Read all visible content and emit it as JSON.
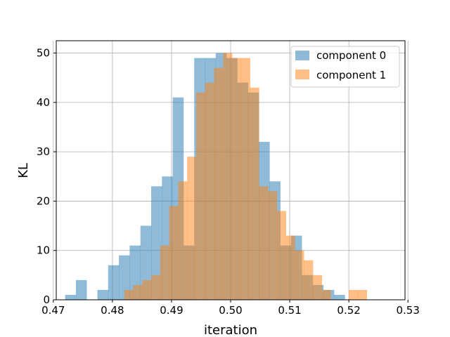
{
  "chart_data": {
    "type": "bar",
    "subtype": "overlapping-histogram",
    "xlabel": "iteration",
    "ylabel": "KL",
    "xlim": [
      0.4705,
      0.5295
    ],
    "ylim": [
      0,
      52.5
    ],
    "xticks": [
      "0.47",
      "0.48",
      "0.49",
      "0.50",
      "0.51",
      "0.52",
      "0.53"
    ],
    "yticks": [
      "0",
      "10",
      "20",
      "30",
      "40",
      "50"
    ],
    "grid": true,
    "legend_position": "top-right",
    "series": [
      {
        "name": "component 0",
        "color": "#1f77b4",
        "alpha": 0.5,
        "bin_start": 0.472,
        "bin_width": 0.00182,
        "counts": [
          1,
          4,
          0,
          2,
          7,
          9,
          11,
          15,
          23,
          25,
          41,
          11,
          49,
          49,
          50,
          49,
          44,
          42,
          32,
          24,
          11,
          13,
          5,
          3,
          2,
          1
        ]
      },
      {
        "name": "component 1",
        "color": "#ff7f0e",
        "alpha": 0.5,
        "bin_start": 0.482,
        "bin_width": 0.00152,
        "counts": [
          2,
          3,
          4,
          5,
          11,
          19,
          24,
          29,
          42,
          44,
          47,
          50,
          49,
          49,
          43,
          23,
          22,
          18,
          13,
          10,
          8,
          5,
          2,
          0,
          0,
          2,
          2,
          0
        ]
      }
    ],
    "legend": [
      {
        "label": "component 0",
        "color": "#1f77b4"
      },
      {
        "label": "component 1",
        "color": "#ff7f0e"
      }
    ]
  }
}
